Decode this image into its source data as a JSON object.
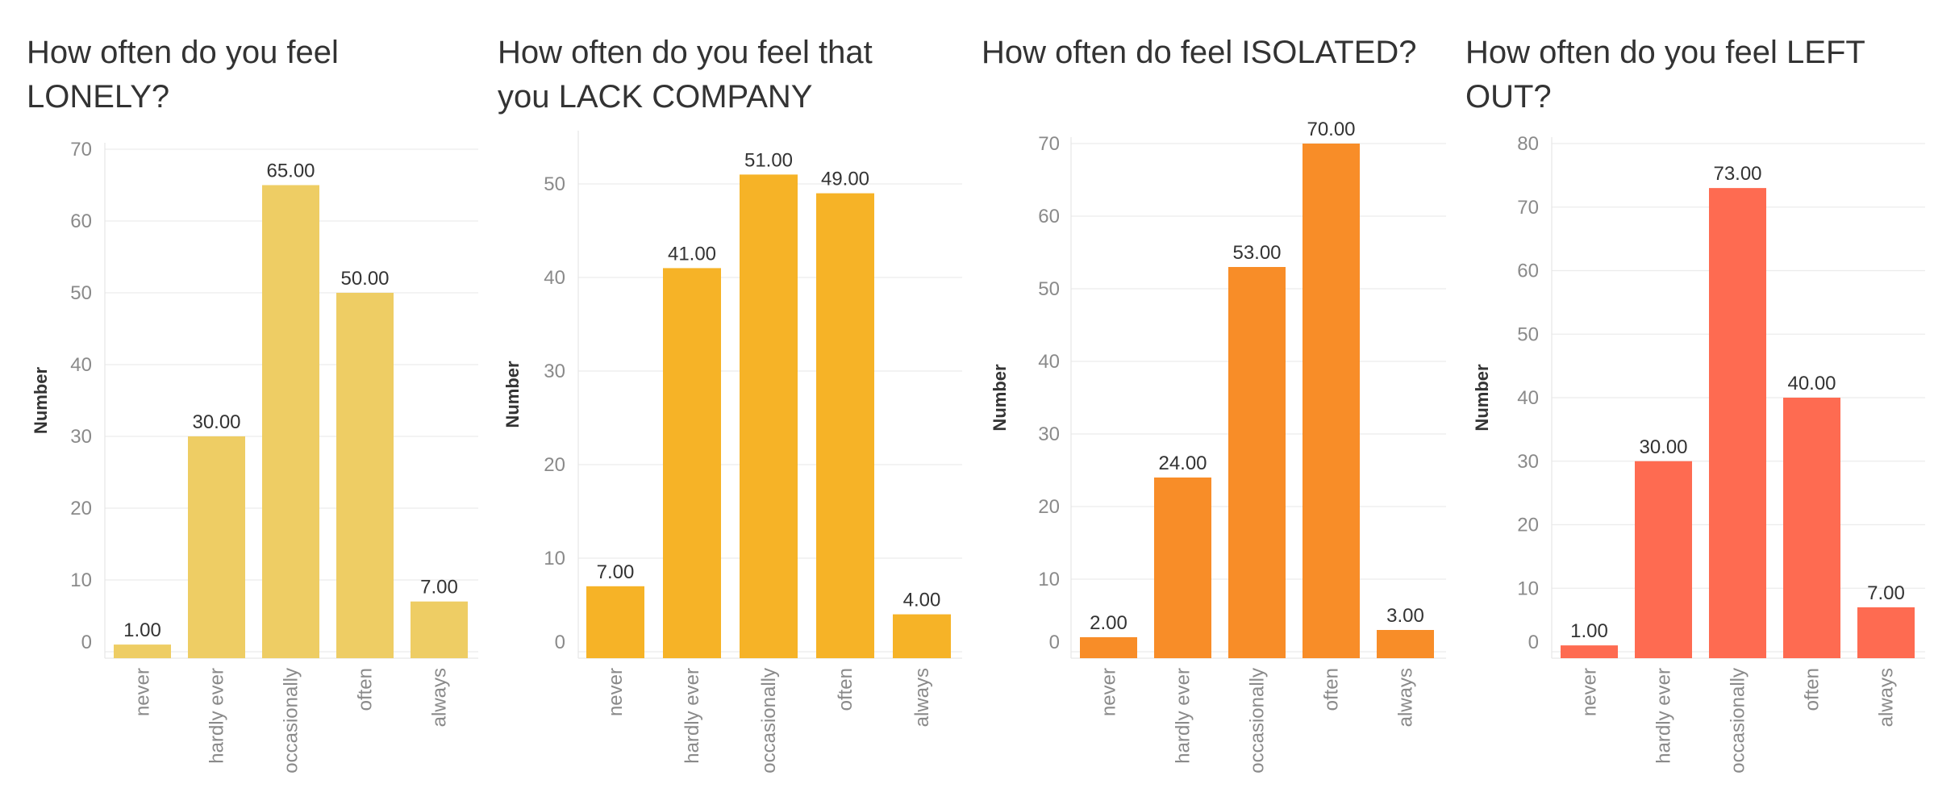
{
  "chart_data": [
    {
      "type": "bar",
      "title": "How often do you feel LONELY?",
      "ylabel": "Number",
      "xlabel": "",
      "categories": [
        "never",
        "hardly ever",
        "occasionally",
        "often",
        "always"
      ],
      "values": [
        1,
        30,
        65,
        50,
        7
      ],
      "data_labels": [
        "1.00",
        "30.00",
        "65.00",
        "50.00",
        "7.00"
      ],
      "yticks": [
        0,
        10,
        20,
        30,
        40,
        50,
        60,
        70
      ],
      "ylim": [
        0,
        70
      ],
      "grid": true,
      "color": "#EECD64"
    },
    {
      "type": "bar",
      "title": "How often do you feel that you LACK COMPANY",
      "ylabel": "Number",
      "xlabel": "",
      "categories": [
        "never",
        "hardly ever",
        "occasionally",
        "often",
        "always"
      ],
      "values": [
        7,
        41,
        51,
        49,
        4
      ],
      "data_labels": [
        "7.00",
        "41.00",
        "51.00",
        "49.00",
        "4.00"
      ],
      "yticks": [
        0,
        10,
        20,
        30,
        40,
        50
      ],
      "ylim": [
        0,
        55
      ],
      "grid": true,
      "color": "#F6B327"
    },
    {
      "type": "bar",
      "title": "How often do feel ISOLATED?",
      "ylabel": "Number",
      "xlabel": "",
      "categories": [
        "never",
        "hardly ever",
        "occasionally",
        "often",
        "always"
      ],
      "values": [
        2,
        24,
        53,
        70,
        3
      ],
      "data_labels": [
        "2.00",
        "24.00",
        "53.00",
        "70.00",
        "3.00"
      ],
      "yticks": [
        0,
        10,
        20,
        30,
        40,
        50,
        60,
        70
      ],
      "ylim": [
        0,
        70
      ],
      "grid": true,
      "color": "#F88D28"
    },
    {
      "type": "bar",
      "title": "How often do you feel LEFT OUT?",
      "ylabel": "Number",
      "xlabel": "",
      "categories": [
        "never",
        "hardly ever",
        "occasionally",
        "often",
        "always"
      ],
      "values": [
        1,
        30,
        73,
        40,
        7
      ],
      "data_labels": [
        "1.00",
        "30.00",
        "73.00",
        "40.00",
        "7.00"
      ],
      "yticks": [
        0,
        10,
        20,
        30,
        40,
        50,
        60,
        70,
        80
      ],
      "ylim": [
        0,
        80
      ],
      "grid": true,
      "color": "#FE6B51"
    }
  ]
}
